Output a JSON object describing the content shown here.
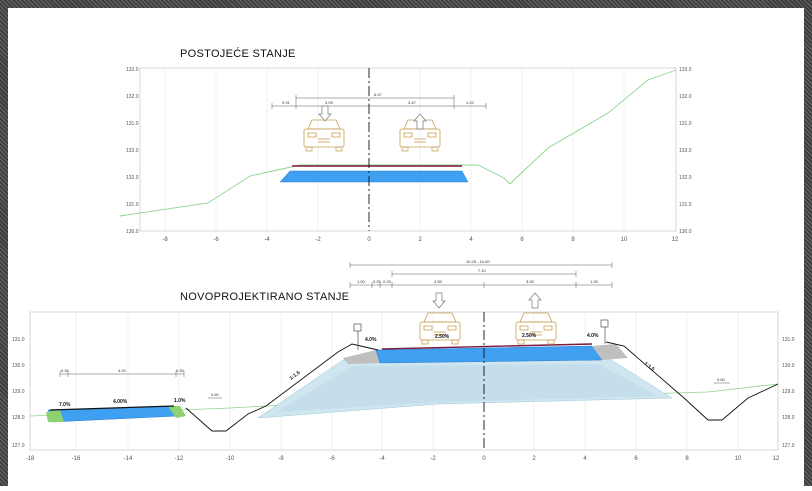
{
  "top": {
    "title": "POSTOJEĆE STANJE",
    "x_ticks": [
      "-8",
      "-6",
      "-4",
      "-2",
      "0",
      "2",
      "4",
      "6",
      "8",
      "10",
      "12"
    ],
    "y_ticks": [
      "133.0",
      "132.0",
      "131.0",
      "133.0",
      "132.0",
      "131.0",
      "130.0"
    ],
    "dims": {
      "total": "6.57",
      "left_edge": "0.91",
      "left_lane": "3.09",
      "right_lane": "3.47",
      "right_edge": "1.22"
    }
  },
  "bottom": {
    "title": "NOVOPROJEKTIRANO STANJE",
    "x_ticks": [
      "-18",
      "-16",
      "-14",
      "-12",
      "-10",
      "-8",
      "-6",
      "-4",
      "-2",
      "0",
      "2",
      "4",
      "6",
      "8",
      "10",
      "12"
    ],
    "y_ticks": [
      "131.0",
      "130.0",
      "129.0",
      "128.0",
      "127.0"
    ],
    "dims": {
      "total": "10.25 - 10.00",
      "inner": "7.10",
      "left_shoulder": "1.00",
      "left_edge_a": "0.25",
      "left_edge_b": "0.25",
      "left_lane": "3.55",
      "right_lane": "3.55",
      "right_shoulder": "1.25",
      "parking_left": "0.30",
      "parking_mid": "4.20",
      "parking_right": "0.30",
      "ditch_left": "0.60",
      "ditch_right": "0.60"
    },
    "slopes": {
      "parking_left": "7.0%",
      "parking_mid": "4.00%",
      "parking_right": "1.0%",
      "road_left_shoulder": "4.0%",
      "road_left": "2.50%",
      "road_right": "2.50%",
      "road_right_shoulder": "4.0%",
      "embank_left": "1:1.5",
      "embank_right": "1:1.5"
    }
  }
}
